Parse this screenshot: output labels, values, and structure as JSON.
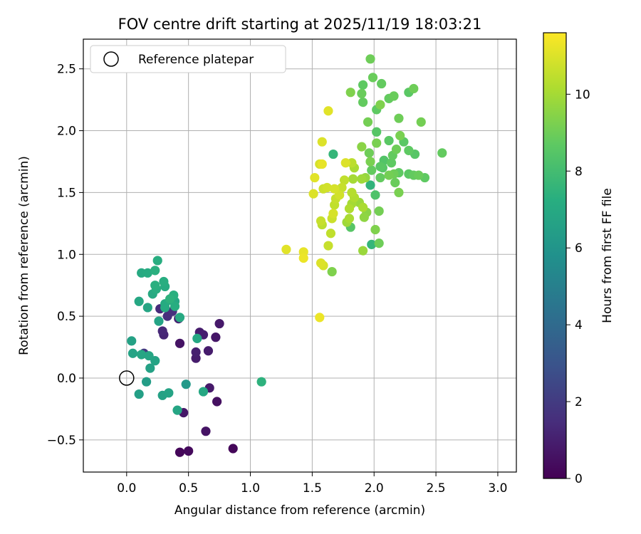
{
  "chart_data": {
    "type": "scatter",
    "title": "FOV centre drift starting at 2025/11/19 18:03:21",
    "xlabel": "Angular distance from reference (arcmin)",
    "ylabel": "Rotation from reference (arcmin)",
    "xlim": [
      -0.35,
      3.15
    ],
    "ylim": [
      -0.76,
      2.74
    ],
    "xticks": [
      0.0,
      0.5,
      1.0,
      1.5,
      2.0,
      2.5,
      3.0
    ],
    "xtick_labels": [
      "0.0",
      "0.5",
      "1.0",
      "1.5",
      "2.0",
      "2.5",
      "3.0"
    ],
    "yticks": [
      -0.5,
      0.0,
      0.5,
      1.0,
      1.5,
      2.0,
      2.5
    ],
    "ytick_labels": [
      "−0.5",
      "0.0",
      "0.5",
      "1.0",
      "1.5",
      "2.0",
      "2.5"
    ],
    "grid": true,
    "legend": {
      "position": "top-left",
      "label": "Reference platepar"
    },
    "reference_point": {
      "x": 0.0,
      "y": 0.0
    },
    "colorbar": {
      "label": "Hours from first FF file",
      "range": [
        0,
        11.6
      ],
      "ticks": [
        0,
        2,
        4,
        6,
        8,
        10
      ],
      "tick_labels": [
        "0",
        "2",
        "4",
        "6",
        "8",
        "10"
      ],
      "colormap": "viridis"
    },
    "points": [
      {
        "x": 0.43,
        "y": -0.6,
        "h": 0.2
      },
      {
        "x": 0.5,
        "y": -0.59,
        "h": 0.3
      },
      {
        "x": 0.86,
        "y": -0.57,
        "h": 0.2
      },
      {
        "x": 0.64,
        "y": -0.43,
        "h": 0.6
      },
      {
        "x": 0.46,
        "y": -0.28,
        "h": 0.7
      },
      {
        "x": 0.73,
        "y": -0.19,
        "h": 0.5
      },
      {
        "x": 0.67,
        "y": -0.08,
        "h": 0.8
      },
      {
        "x": 0.56,
        "y": 0.16,
        "h": 0.9
      },
      {
        "x": 0.56,
        "y": 0.21,
        "h": 1.0
      },
      {
        "x": 0.66,
        "y": 0.22,
        "h": 0.9
      },
      {
        "x": 0.43,
        "y": 0.28,
        "h": 0.6
      },
      {
        "x": 0.72,
        "y": 0.33,
        "h": 0.7
      },
      {
        "x": 0.3,
        "y": 0.35,
        "h": 1.2
      },
      {
        "x": 0.29,
        "y": 0.38,
        "h": 1.3
      },
      {
        "x": 0.59,
        "y": 0.37,
        "h": 0.9
      },
      {
        "x": 0.62,
        "y": 0.35,
        "h": 1.0
      },
      {
        "x": 0.75,
        "y": 0.44,
        "h": 0.8
      },
      {
        "x": 0.42,
        "y": 0.48,
        "h": 1.1
      },
      {
        "x": 0.33,
        "y": 0.5,
        "h": 1.5
      },
      {
        "x": 0.27,
        "y": 0.56,
        "h": 1.4
      },
      {
        "x": 0.14,
        "y": 0.2,
        "h": 1.8
      },
      {
        "x": 0.37,
        "y": 0.54,
        "h": 1.6
      },
      {
        "x": 0.1,
        "y": -0.13,
        "h": 6.5
      },
      {
        "x": 0.29,
        "y": -0.14,
        "h": 6.6
      },
      {
        "x": 0.34,
        "y": -0.12,
        "h": 6.7
      },
      {
        "x": 0.16,
        "y": -0.03,
        "h": 6.4
      },
      {
        "x": 0.48,
        "y": -0.05,
        "h": 6.2
      },
      {
        "x": 0.62,
        "y": -0.11,
        "h": 6.9
      },
      {
        "x": 0.41,
        "y": -0.26,
        "h": 6.8
      },
      {
        "x": 0.19,
        "y": 0.08,
        "h": 6.6
      },
      {
        "x": 0.23,
        "y": 0.14,
        "h": 6.7
      },
      {
        "x": 0.18,
        "y": 0.18,
        "h": 6.8
      },
      {
        "x": 0.05,
        "y": 0.2,
        "h": 6.7
      },
      {
        "x": 0.12,
        "y": 0.19,
        "h": 6.8
      },
      {
        "x": 0.04,
        "y": 0.3,
        "h": 6.6
      },
      {
        "x": 0.57,
        "y": 0.32,
        "h": 6.9
      },
      {
        "x": 0.26,
        "y": 0.46,
        "h": 6.7
      },
      {
        "x": 0.43,
        "y": 0.49,
        "h": 7.0
      },
      {
        "x": 0.17,
        "y": 0.57,
        "h": 6.8
      },
      {
        "x": 0.1,
        "y": 0.62,
        "h": 6.9
      },
      {
        "x": 0.31,
        "y": 0.6,
        "h": 7.1
      },
      {
        "x": 0.36,
        "y": 0.63,
        "h": 7.0
      },
      {
        "x": 0.39,
        "y": 0.58,
        "h": 7.2
      },
      {
        "x": 0.31,
        "y": 0.57,
        "h": 7.1
      },
      {
        "x": 0.39,
        "y": 0.62,
        "h": 6.9
      },
      {
        "x": 0.21,
        "y": 0.68,
        "h": 7.0
      },
      {
        "x": 0.24,
        "y": 0.72,
        "h": 7.2
      },
      {
        "x": 0.23,
        "y": 0.75,
        "h": 7.3
      },
      {
        "x": 0.31,
        "y": 0.74,
        "h": 7.1
      },
      {
        "x": 0.35,
        "y": 0.64,
        "h": 7.4
      },
      {
        "x": 0.38,
        "y": 0.67,
        "h": 7.3
      },
      {
        "x": 0.3,
        "y": 0.78,
        "h": 7.2
      },
      {
        "x": 0.12,
        "y": 0.85,
        "h": 7.0
      },
      {
        "x": 0.17,
        "y": 0.85,
        "h": 7.1
      },
      {
        "x": 0.23,
        "y": 0.87,
        "h": 7.3
      },
      {
        "x": 0.25,
        "y": 0.95,
        "h": 7.2
      },
      {
        "x": 1.09,
        "y": -0.03,
        "h": 7.4
      },
      {
        "x": 1.56,
        "y": 0.49,
        "h": 11.3
      },
      {
        "x": 1.57,
        "y": 0.93,
        "h": 11.0
      },
      {
        "x": 1.59,
        "y": 0.91,
        "h": 10.9
      },
      {
        "x": 1.29,
        "y": 1.04,
        "h": 11.1
      },
      {
        "x": 1.43,
        "y": 1.02,
        "h": 11.2
      },
      {
        "x": 1.43,
        "y": 0.97,
        "h": 11.3
      },
      {
        "x": 1.66,
        "y": 0.86,
        "h": 9.3
      },
      {
        "x": 1.63,
        "y": 1.07,
        "h": 10.6
      },
      {
        "x": 1.65,
        "y": 1.17,
        "h": 10.5
      },
      {
        "x": 1.58,
        "y": 1.24,
        "h": 10.4
      },
      {
        "x": 1.57,
        "y": 1.27,
        "h": 10.6
      },
      {
        "x": 1.66,
        "y": 1.29,
        "h": 10.7
      },
      {
        "x": 1.67,
        "y": 1.33,
        "h": 10.9
      },
      {
        "x": 1.68,
        "y": 1.4,
        "h": 10.5
      },
      {
        "x": 1.69,
        "y": 1.45,
        "h": 10.6
      },
      {
        "x": 1.68,
        "y": 1.53,
        "h": 10.9
      },
      {
        "x": 1.62,
        "y": 1.54,
        "h": 10.8
      },
      {
        "x": 1.59,
        "y": 1.53,
        "h": 10.7
      },
      {
        "x": 1.51,
        "y": 1.49,
        "h": 11.0
      },
      {
        "x": 1.52,
        "y": 1.62,
        "h": 11.1
      },
      {
        "x": 1.58,
        "y": 1.73,
        "h": 11.2
      },
      {
        "x": 1.56,
        "y": 1.73,
        "h": 10.9
      },
      {
        "x": 1.58,
        "y": 1.91,
        "h": 11.0
      },
      {
        "x": 1.63,
        "y": 2.16,
        "h": 11.1
      },
      {
        "x": 1.72,
        "y": 1.48,
        "h": 10.8
      },
      {
        "x": 1.74,
        "y": 1.54,
        "h": 10.6
      },
      {
        "x": 1.76,
        "y": 1.6,
        "h": 10.5
      },
      {
        "x": 1.77,
        "y": 1.74,
        "h": 11.0
      },
      {
        "x": 1.72,
        "y": 1.48,
        "h": 10.4
      },
      {
        "x": 1.8,
        "y": 1.37,
        "h": 10.2
      },
      {
        "x": 1.82,
        "y": 1.41,
        "h": 10.0
      },
      {
        "x": 1.78,
        "y": 1.26,
        "h": 9.9
      },
      {
        "x": 1.81,
        "y": 1.22,
        "h": 8.5
      },
      {
        "x": 1.8,
        "y": 1.29,
        "h": 10.1
      },
      {
        "x": 1.82,
        "y": 1.5,
        "h": 10.3
      },
      {
        "x": 1.84,
        "y": 1.46,
        "h": 10.2
      },
      {
        "x": 1.83,
        "y": 1.61,
        "h": 10.0
      },
      {
        "x": 1.82,
        "y": 1.74,
        "h": 10.4
      },
      {
        "x": 1.84,
        "y": 1.7,
        "h": 10.1
      },
      {
        "x": 1.88,
        "y": 1.42,
        "h": 9.8
      },
      {
        "x": 1.91,
        "y": 1.38,
        "h": 10.1
      },
      {
        "x": 1.9,
        "y": 1.61,
        "h": 9.9
      },
      {
        "x": 1.93,
        "y": 1.62,
        "h": 9.7
      },
      {
        "x": 1.94,
        "y": 1.34,
        "h": 9.5
      },
      {
        "x": 1.92,
        "y": 1.3,
        "h": 9.6
      },
      {
        "x": 1.91,
        "y": 1.03,
        "h": 9.8
      },
      {
        "x": 1.98,
        "y": 1.08,
        "h": 7.6
      },
      {
        "x": 2.04,
        "y": 1.09,
        "h": 9.0
      },
      {
        "x": 2.01,
        "y": 1.2,
        "h": 9.3
      },
      {
        "x": 1.97,
        "y": 1.56,
        "h": 7.5
      },
      {
        "x": 2.01,
        "y": 1.48,
        "h": 8.3
      },
      {
        "x": 1.96,
        "y": 1.82,
        "h": 9.0
      },
      {
        "x": 1.9,
        "y": 1.87,
        "h": 9.5
      },
      {
        "x": 1.97,
        "y": 1.75,
        "h": 9.2
      },
      {
        "x": 1.98,
        "y": 1.68,
        "h": 8.8
      },
      {
        "x": 2.04,
        "y": 1.35,
        "h": 9.1
      },
      {
        "x": 2.05,
        "y": 1.62,
        "h": 8.8
      },
      {
        "x": 2.05,
        "y": 1.71,
        "h": 8.6
      },
      {
        "x": 2.07,
        "y": 1.7,
        "h": 8.5
      },
      {
        "x": 2.08,
        "y": 1.76,
        "h": 8.4
      },
      {
        "x": 2.12,
        "y": 1.64,
        "h": 9.1
      },
      {
        "x": 2.14,
        "y": 1.74,
        "h": 8.7
      },
      {
        "x": 2.17,
        "y": 1.58,
        "h": 8.9
      },
      {
        "x": 2.16,
        "y": 1.65,
        "h": 9.0
      },
      {
        "x": 2.2,
        "y": 1.5,
        "h": 9.2
      },
      {
        "x": 2.18,
        "y": 1.85,
        "h": 9.0
      },
      {
        "x": 2.15,
        "y": 1.8,
        "h": 8.8
      },
      {
        "x": 2.2,
        "y": 1.66,
        "h": 8.7
      },
      {
        "x": 2.12,
        "y": 1.92,
        "h": 8.6
      },
      {
        "x": 2.02,
        "y": 1.9,
        "h": 9.2
      },
      {
        "x": 2.02,
        "y": 1.99,
        "h": 8.5
      },
      {
        "x": 1.95,
        "y": 2.07,
        "h": 9.1
      },
      {
        "x": 2.02,
        "y": 2.17,
        "h": 8.7
      },
      {
        "x": 2.05,
        "y": 2.21,
        "h": 9.3
      },
      {
        "x": 2.12,
        "y": 2.26,
        "h": 8.8
      },
      {
        "x": 2.16,
        "y": 2.28,
        "h": 8.9
      },
      {
        "x": 2.2,
        "y": 2.1,
        "h": 9.0
      },
      {
        "x": 2.21,
        "y": 1.96,
        "h": 9.2
      },
      {
        "x": 2.24,
        "y": 1.91,
        "h": 8.6
      },
      {
        "x": 2.28,
        "y": 1.84,
        "h": 8.7
      },
      {
        "x": 2.33,
        "y": 1.81,
        "h": 8.5
      },
      {
        "x": 2.32,
        "y": 1.64,
        "h": 8.8
      },
      {
        "x": 2.28,
        "y": 1.65,
        "h": 8.6
      },
      {
        "x": 2.36,
        "y": 1.64,
        "h": 8.9
      },
      {
        "x": 2.41,
        "y": 1.62,
        "h": 8.7
      },
      {
        "x": 2.55,
        "y": 1.82,
        "h": 8.8
      },
      {
        "x": 2.38,
        "y": 2.07,
        "h": 9.1
      },
      {
        "x": 2.28,
        "y": 2.31,
        "h": 8.6
      },
      {
        "x": 2.32,
        "y": 2.34,
        "h": 9.0
      },
      {
        "x": 2.06,
        "y": 2.38,
        "h": 8.8
      },
      {
        "x": 1.99,
        "y": 2.43,
        "h": 8.9
      },
      {
        "x": 1.91,
        "y": 2.37,
        "h": 8.7
      },
      {
        "x": 1.9,
        "y": 2.3,
        "h": 8.9
      },
      {
        "x": 1.91,
        "y": 2.23,
        "h": 8.8
      },
      {
        "x": 1.81,
        "y": 2.31,
        "h": 9.3
      },
      {
        "x": 1.97,
        "y": 2.58,
        "h": 9.0
      },
      {
        "x": 1.67,
        "y": 1.81,
        "h": 7.6
      }
    ]
  }
}
